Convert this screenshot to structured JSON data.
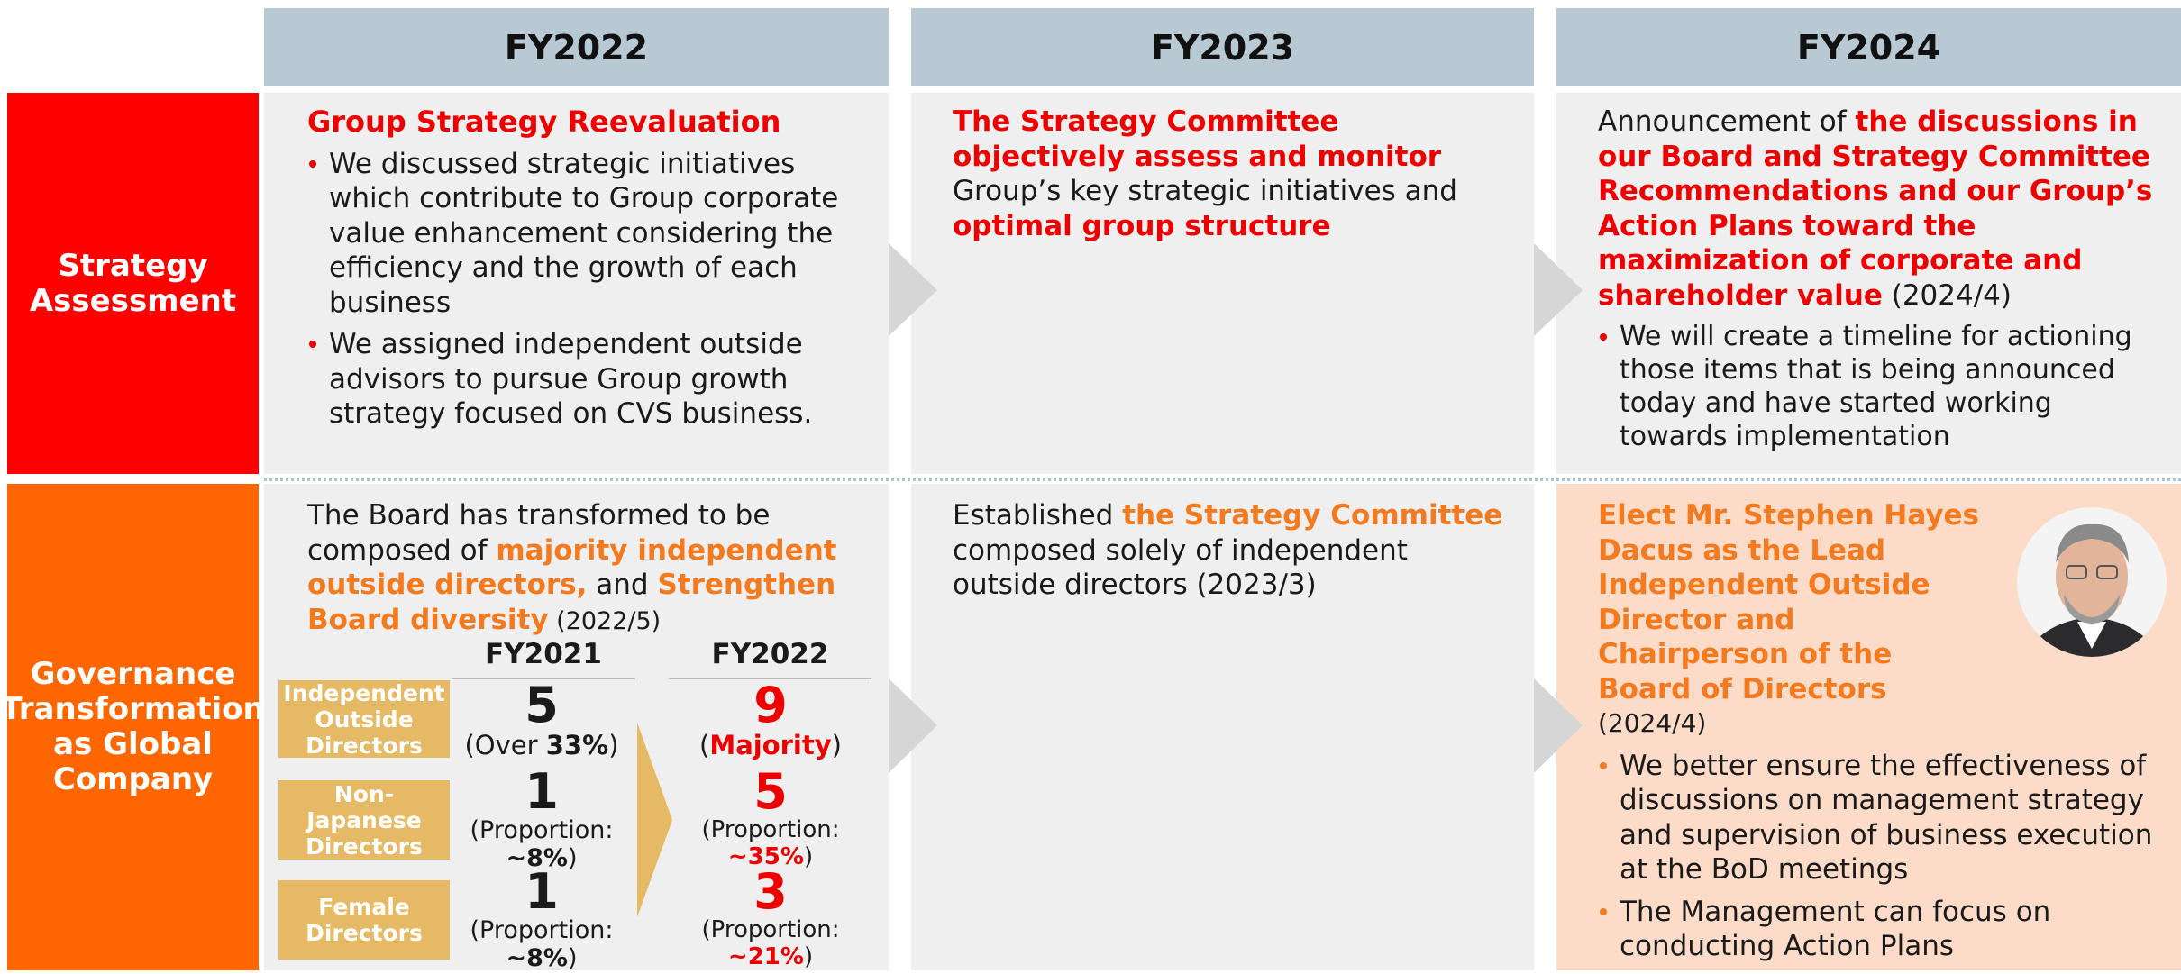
{
  "columns": [
    "FY2022",
    "FY2023",
    "FY2024"
  ],
  "rows": [
    {
      "label": "Strategy Assessment",
      "cells": [
        {
          "title": "Group Strategy Reevaluation",
          "bullets": [
            "We discussed strategic initiatives which contribute to Group corporate value enhancement considering the efficiency and the growth of each business",
            "We assigned independent outside advisors to pursue Group growth strategy focused on CVS business."
          ]
        },
        {
          "text": [
            "The Strategy Committee objectively assess and monitor",
            "Group’s key strategic initiatives and",
            "optimal group structure"
          ]
        },
        {
          "text": [
            "Announcement of ",
            "the discussions in our Board and Strategy Committee Recommendations and our Group’s Action Plans toward the maximization of corporate and shareholder value",
            " (2024/4)"
          ],
          "bullets": [
            "We will create a timeline for actioning those items that is being announced today and have started working towards implementation"
          ]
        }
      ]
    },
    {
      "label": "Governance Transformation as Global Company",
      "cells": [
        {
          "text": [
            "The Board has transformed to be composed of ",
            "majority independent outside directors,",
            " and ",
            "Strengthen Board diversity",
            " (2022/5)"
          ],
          "table": {
            "columns": [
              "FY2021",
              "FY2022"
            ],
            "rows": [
              {
                "label": "Independent Outside Directors",
                "before": 5,
                "before_note": [
                  "(Over ",
                  "33%",
                  ")"
                ],
                "after": 9,
                "after_note": [
                  "(",
                  "Majority",
                  ")"
                ]
              },
              {
                "label": "Non-Japanese Directors",
                "before": 1,
                "before_note": [
                  "(Proportion:",
                  "~8%",
                  ")"
                ],
                "after": 5,
                "after_note": [
                  "(Proportion:",
                  "~35%",
                  ")"
                ]
              },
              {
                "label": "Female Directors",
                "before": 1,
                "before_note": [
                  "(Proportion:",
                  "~8%",
                  ")"
                ],
                "after": 3,
                "after_note": [
                  "(Proportion:",
                  "~21%",
                  ")"
                ]
              }
            ]
          }
        },
        {
          "text": [
            "Established ",
            "the Strategy Committee",
            " composed solely of independent outside directors (2023/3)"
          ]
        },
        {
          "title": "Elect Mr. Stephen Hayes Dacus as the Lead Independent Outside Director and Chairperson of the Board of Directors",
          "date": "(2024/4)",
          "bullets": [
            "We better ensure the effectiveness of discussions on management strategy and supervision of business execution at the BoD meetings",
            "The Management can focus on conducting Action Plans"
          ]
        }
      ]
    }
  ]
}
